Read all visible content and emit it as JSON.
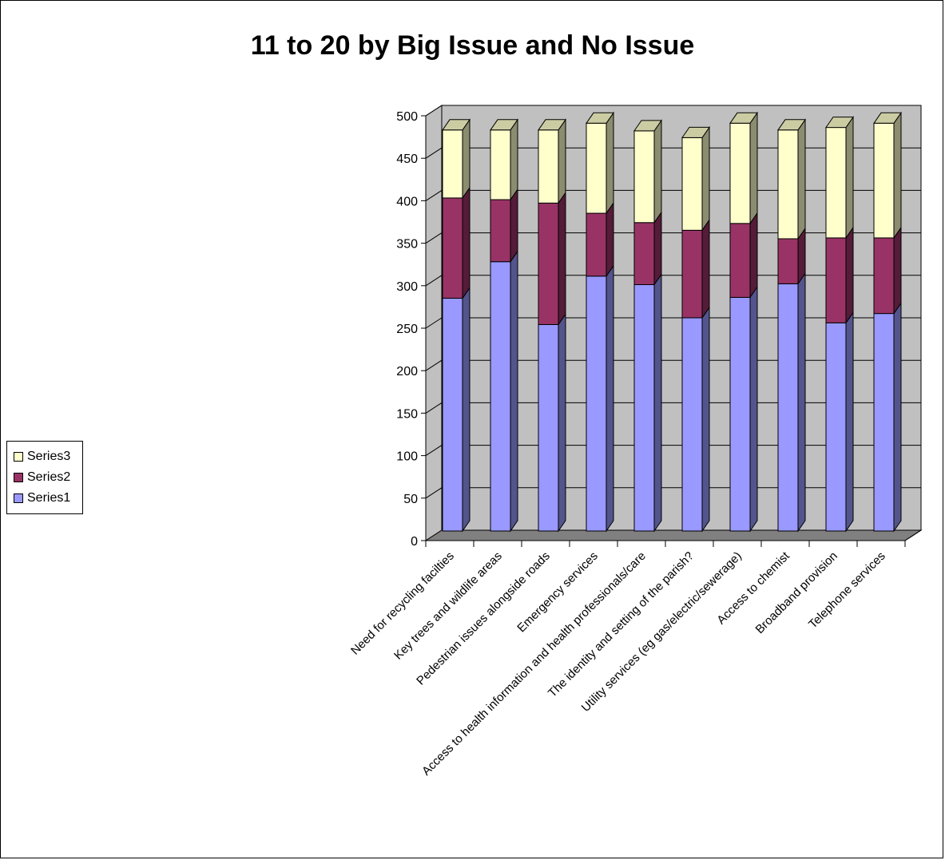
{
  "chart_data": {
    "type": "bar",
    "stacked": true,
    "three_d": true,
    "title": "11 to 20 by Big Issue and No Issue",
    "xlabel": "",
    "ylabel": "",
    "ylim": [
      0,
      500
    ],
    "yticks": [
      0,
      50,
      100,
      150,
      200,
      250,
      300,
      350,
      400,
      450,
      500
    ],
    "grid": true,
    "legend_position": "left",
    "categories": [
      "Need for recycling facilties",
      "Key trees and wildlife areas",
      "Pedestrian issues alongside roads",
      "Emergency services",
      "Access to health information and health professionals/care",
      "The identity and setting of the parish?",
      "Utility services (eg gas/electric/sewerage)",
      "Access to chemist",
      "Broadband provision",
      "Telephone services"
    ],
    "series": [
      {
        "name": "Series1",
        "color": "#9999ff",
        "values": [
          274,
          317,
          243,
          300,
          290,
          251,
          275,
          291,
          245,
          256
        ]
      },
      {
        "name": "Series2",
        "color": "#993366",
        "values": [
          118,
          73,
          143,
          74,
          73,
          103,
          87,
          53,
          100,
          89
        ]
      },
      {
        "name": "Series3",
        "color": "#ffffcc",
        "values": [
          80,
          82,
          86,
          106,
          108,
          109,
          118,
          128,
          130,
          135
        ]
      }
    ]
  },
  "legend": {
    "items": [
      {
        "label": "Series3",
        "color": "#ffffcc"
      },
      {
        "label": "Series2",
        "color": "#993366"
      },
      {
        "label": "Series1",
        "color": "#9999ff"
      }
    ]
  }
}
